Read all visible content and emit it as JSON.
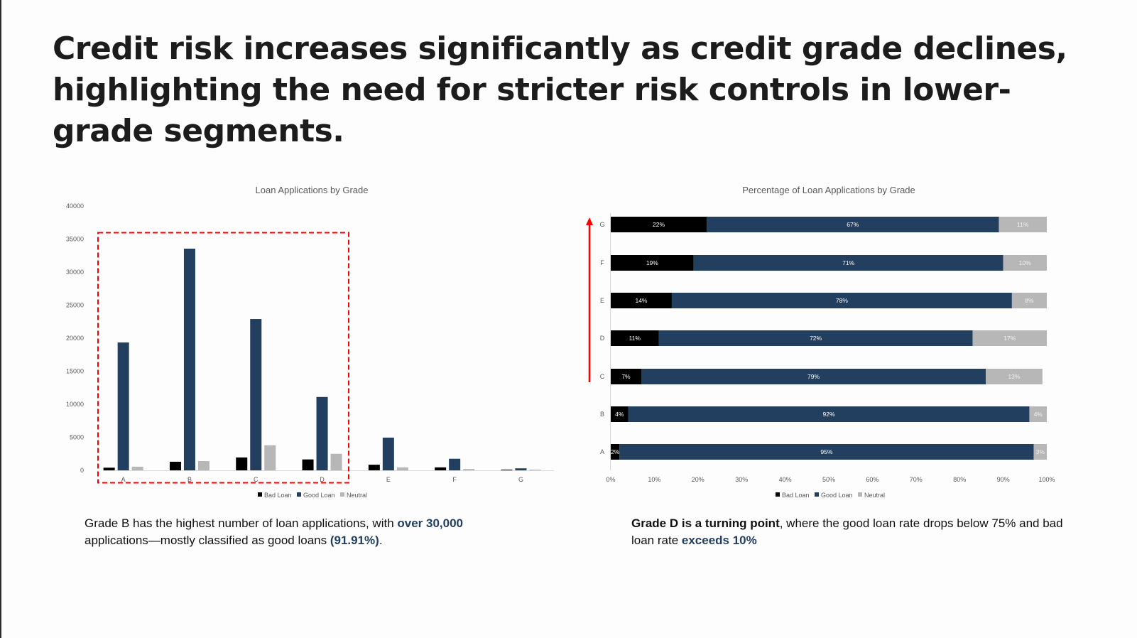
{
  "title": "Credit risk increases significantly as credit grade declines, highlighting the need for stricter risk controls in lower-grade segments.",
  "colors": {
    "bad": "#000000",
    "good": "#233f5f",
    "neutral": "#b7b7b7",
    "highlight": "#ff0000",
    "accent_text": "#233f5f"
  },
  "chart_data": [
    {
      "type": "bar",
      "title": "Loan Applications by Grade",
      "xlabel": "",
      "ylabel": "",
      "categories": [
        "A",
        "B",
        "C",
        "D",
        "E",
        "F",
        "G"
      ],
      "ylim": [
        0,
        40000
      ],
      "yticks": [
        "0",
        "5000",
        "10000",
        "15000",
        "20000",
        "25000",
        "30000",
        "35000",
        "40000"
      ],
      "grid": false,
      "legend": "bottom",
      "series": [
        {
          "name": "Bad Loan",
          "values": [
            400,
            1300,
            1950,
            1650,
            850,
            450,
            100
          ]
        },
        {
          "name": "Good Loan",
          "values": [
            19350,
            33550,
            22900,
            11100,
            4950,
            1750,
            300
          ]
        },
        {
          "name": "Neutral",
          "values": [
            550,
            1400,
            3800,
            2500,
            450,
            200,
            50
          ]
        }
      ],
      "annotation": "dashed red box highlighting grades A–D"
    },
    {
      "type": "bar",
      "orientation": "horizontal-stacked-100",
      "title": "Percentage of Loan Applications by Grade",
      "categories": [
        "A",
        "B",
        "C",
        "D",
        "E",
        "F",
        "G"
      ],
      "xlim": [
        0,
        100
      ],
      "xticks": [
        "0%",
        "10%",
        "20%",
        "30%",
        "40%",
        "50%",
        "60%",
        "70%",
        "80%",
        "90%",
        "100%"
      ],
      "grid": false,
      "legend": "bottom",
      "series": [
        {
          "name": "Bad Loan",
          "values": [
            2,
            4,
            7,
            11,
            14,
            19,
            22
          ],
          "labels": [
            "2%",
            "4%",
            "7%",
            "11%",
            "14%",
            "19%",
            "22%"
          ]
        },
        {
          "name": "Good Loan",
          "values": [
            95,
            92,
            79,
            72,
            78,
            71,
            67
          ],
          "labels": [
            "95%",
            "92%",
            "79%",
            "72%",
            "78%",
            "71%",
            "67%"
          ]
        },
        {
          "name": "Neutral",
          "values": [
            3,
            4,
            13,
            17,
            8,
            10,
            11
          ],
          "labels": [
            "3%",
            "4%",
            "13%",
            "17%",
            "8%",
            "10%",
            "11%"
          ]
        }
      ],
      "annotation": "red upward arrow from grade C to grade G"
    }
  ],
  "captions": {
    "left": {
      "part1": "Grade B has the highest number of loan applications, with ",
      "hl1": "over 30,000",
      "part2": " applications—mostly classified as good loans ",
      "hl2": "(91.91%)",
      "part3": "."
    },
    "right": {
      "bold1": "Grade D is a turning point",
      "part1": ", where the good loan rate drops below 75% and bad loan rate ",
      "hl1": "exceeds 10%"
    }
  }
}
